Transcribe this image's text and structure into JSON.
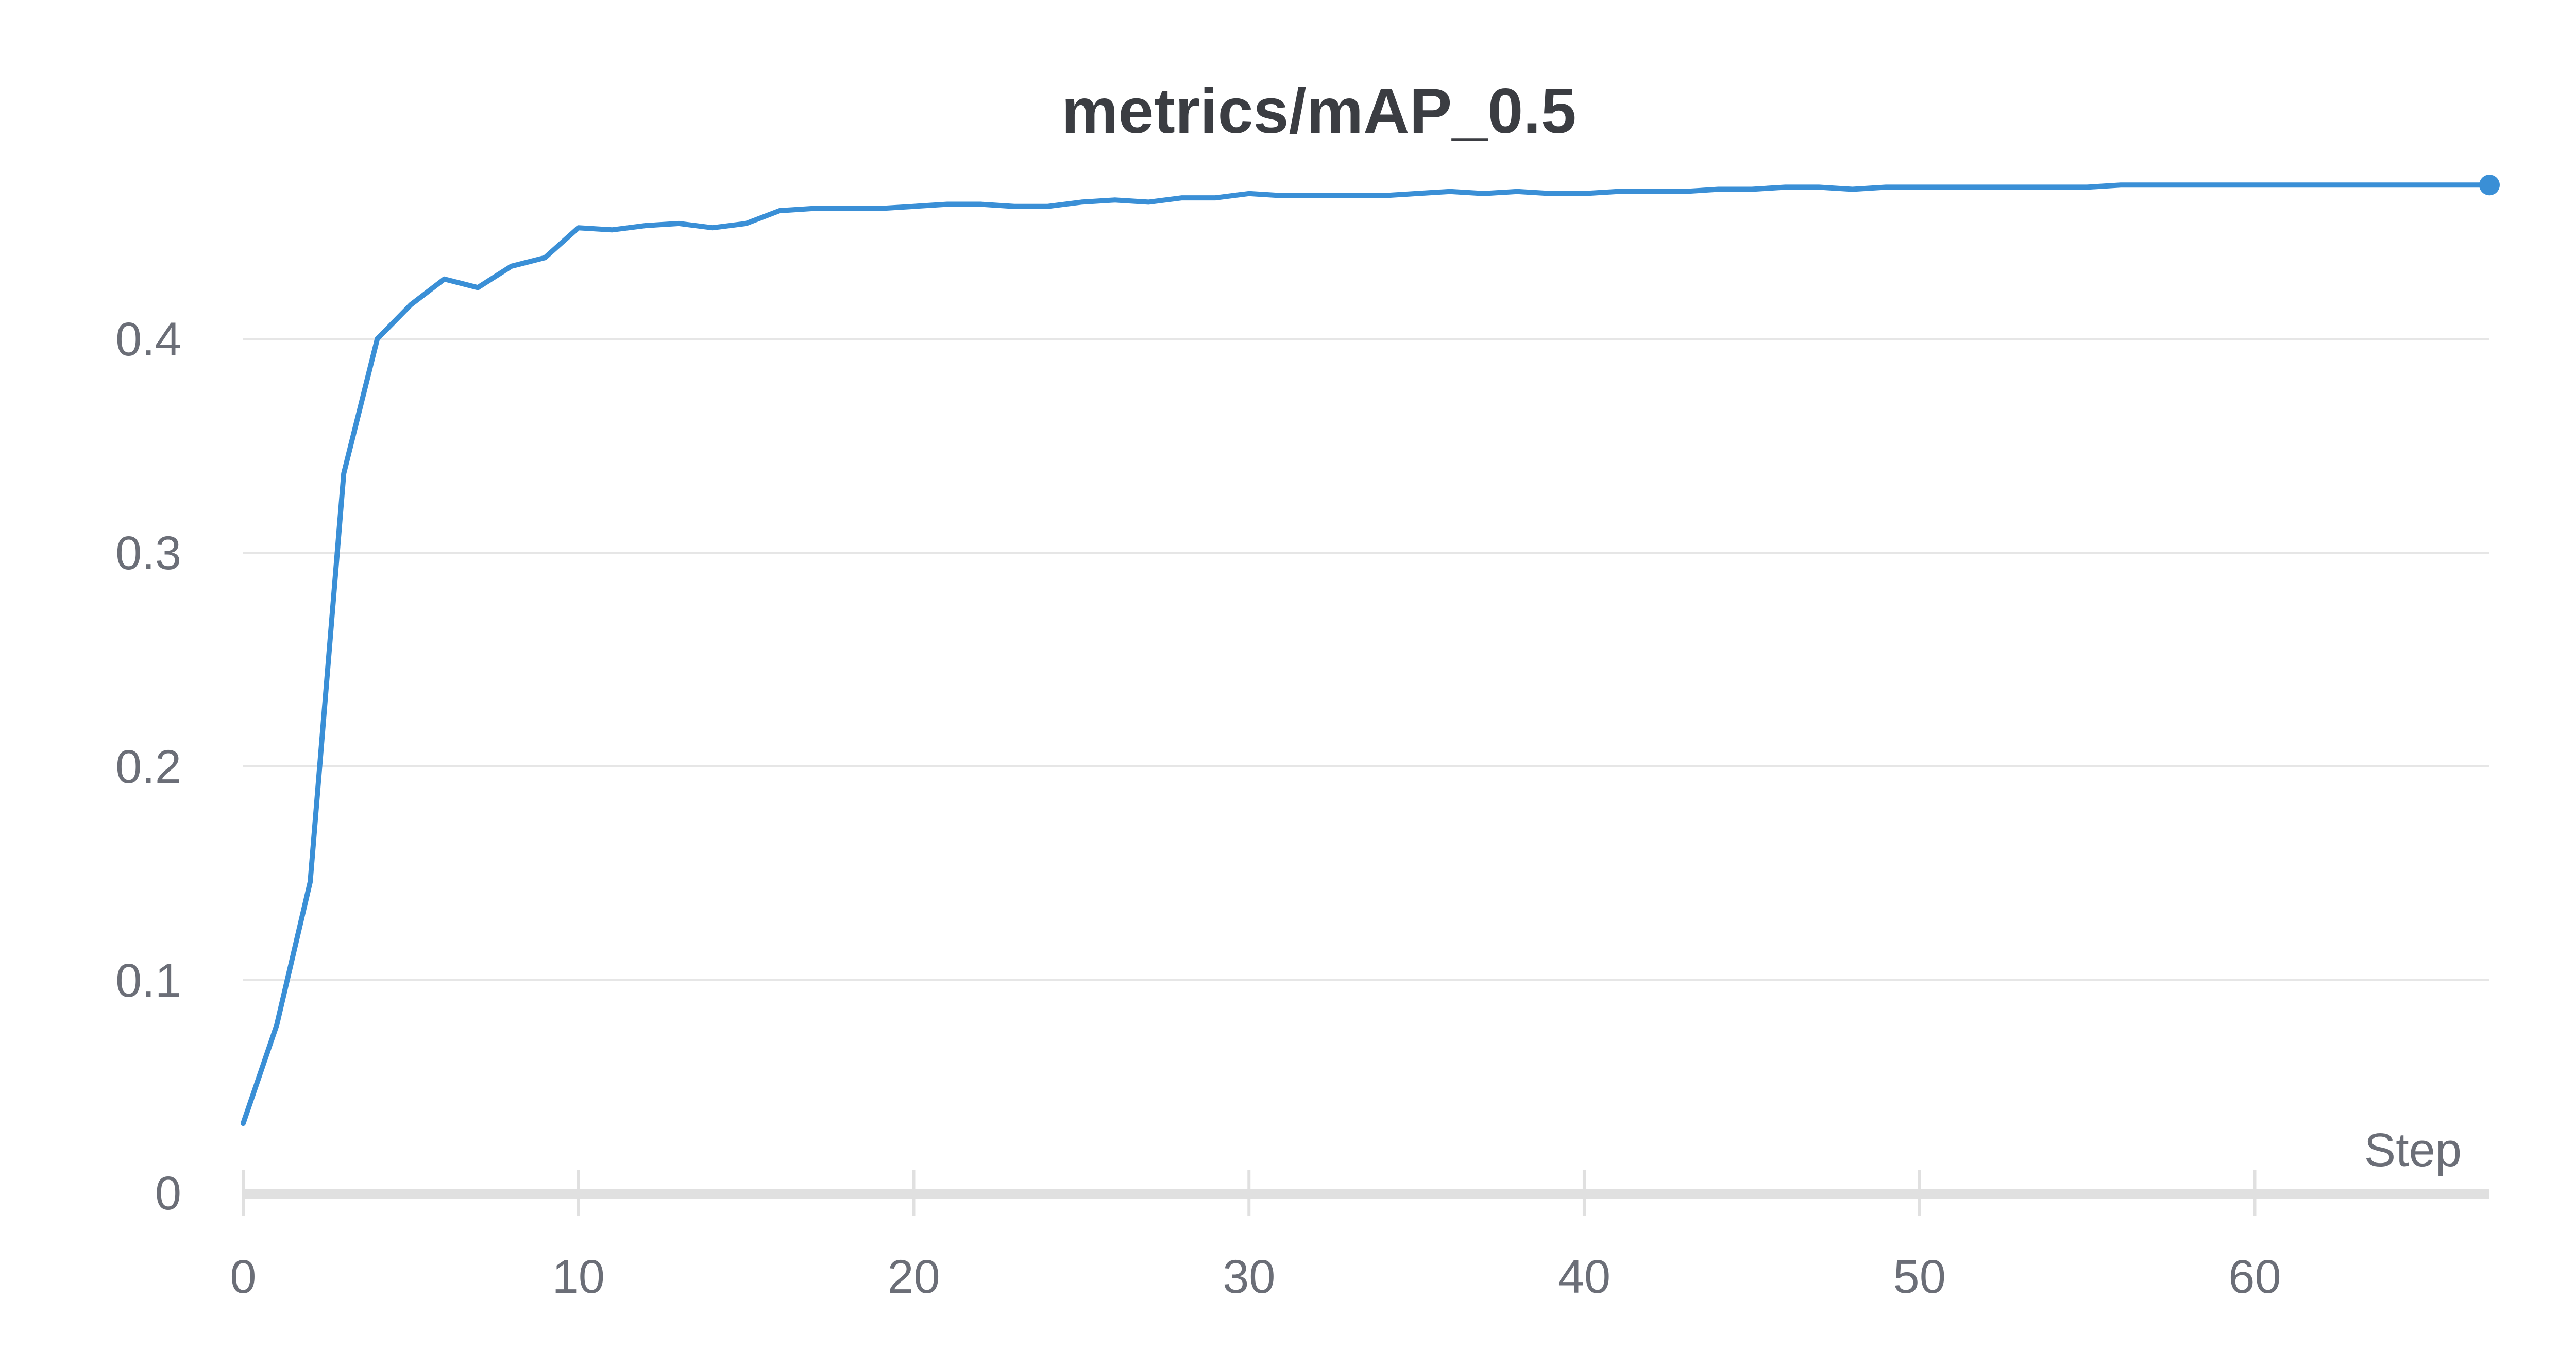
{
  "chart_data": {
    "type": "line",
    "title": "metrics/mAP_0.5",
    "xlabel": "Step",
    "ylabel": "",
    "xlim": [
      0,
      67
    ],
    "ylim": [
      0,
      0.48
    ],
    "x_ticks": [
      {
        "value": 0,
        "label": "0"
      },
      {
        "value": 10,
        "label": "10"
      },
      {
        "value": 20,
        "label": "20"
      },
      {
        "value": 30,
        "label": "30"
      },
      {
        "value": 40,
        "label": "40"
      },
      {
        "value": 50,
        "label": "50"
      },
      {
        "value": 60,
        "label": "60"
      }
    ],
    "y_ticks": [
      {
        "value": 0,
        "label": "0"
      },
      {
        "value": 0.1,
        "label": "0.1"
      },
      {
        "value": 0.2,
        "label": "0.2"
      },
      {
        "value": 0.3,
        "label": "0.3"
      },
      {
        "value": 0.4,
        "label": "0.4"
      }
    ],
    "grid": true,
    "legend": "none",
    "colors": {
      "line": "#3a8fd6",
      "grid": "#e6e6e6",
      "axis": "#e0e0e0",
      "text": "#6b6e77",
      "title": "#3b3d42"
    },
    "series": [
      {
        "x": [
          0,
          1,
          2,
          3,
          4,
          5,
          6,
          7,
          8,
          9,
          10,
          11,
          12,
          13,
          14,
          15,
          16,
          17,
          18,
          19,
          20,
          21,
          22,
          23,
          24,
          25,
          26,
          27,
          28,
          29,
          30,
          31,
          32,
          33,
          34,
          35,
          36,
          37,
          38,
          39,
          40,
          41,
          42,
          43,
          44,
          45,
          46,
          47,
          48,
          49,
          50,
          51,
          52,
          53,
          54,
          55,
          56,
          57,
          58,
          59,
          60,
          61,
          62,
          63,
          64,
          65,
          66,
          67
        ],
        "values": [
          0.033,
          0.079,
          0.146,
          0.337,
          0.4,
          0.416,
          0.428,
          0.424,
          0.434,
          0.438,
          0.452,
          0.451,
          0.453,
          0.454,
          0.452,
          0.454,
          0.46,
          0.461,
          0.461,
          0.461,
          0.462,
          0.463,
          0.463,
          0.462,
          0.462,
          0.464,
          0.465,
          0.464,
          0.466,
          0.466,
          0.468,
          0.467,
          0.467,
          0.467,
          0.467,
          0.468,
          0.469,
          0.468,
          0.469,
          0.468,
          0.468,
          0.469,
          0.469,
          0.469,
          0.47,
          0.47,
          0.471,
          0.471,
          0.47,
          0.471,
          0.471,
          0.471,
          0.471,
          0.471,
          0.471,
          0.471,
          0.472,
          0.472,
          0.472,
          0.472,
          0.472,
          0.472,
          0.472,
          0.472,
          0.472,
          0.472,
          0.472,
          0.472
        ]
      }
    ]
  }
}
